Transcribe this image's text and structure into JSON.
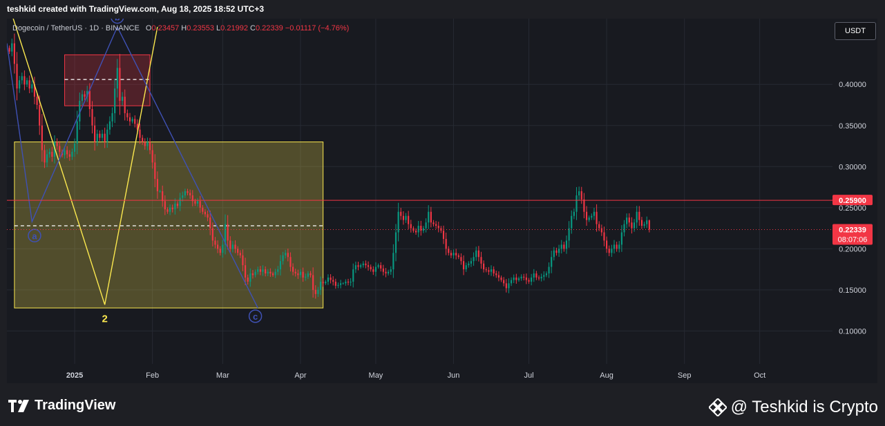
{
  "header": {
    "attribution": "teshkid created with TradingView.com, Aug 18, 2025 18:52 UTC+3"
  },
  "legend": {
    "symbol": "Dogecoin / TetherUS · 1D · BINANCE",
    "o_label": "O",
    "o_value": "0.23457",
    "h_label": "H",
    "h_value": "0.23553",
    "l_label": "L",
    "l_value": "0.21992",
    "c_label": "C",
    "c_value": "0.22339",
    "change": "−0.01117 (−4.76%)"
  },
  "currency_button": "USDT",
  "footer": {
    "logo_text": "TradingView",
    "credit": "@ Teshkid is Crypto"
  },
  "chart_data": {
    "type": "candlestick",
    "symbol": "Dogecoin / TetherUS",
    "interval": "1D",
    "exchange": "BINANCE",
    "y_ticks": [
      "0.40000",
      "0.35000",
      "0.30000",
      "0.25000",
      "0.20000",
      "0.15000",
      "0.10000"
    ],
    "y_tick_values": [
      0.4,
      0.35,
      0.3,
      0.25,
      0.2,
      0.15,
      0.1
    ],
    "ylim": [
      0.06,
      0.48
    ],
    "x_ticks": [
      "2025",
      "Feb",
      "Mar",
      "Apr",
      "May",
      "Jun",
      "Jul",
      "Aug",
      "Sep",
      "Oct"
    ],
    "x_tick_dates": [
      "2025-01-01",
      "2025-02-01",
      "2025-03-01",
      "2025-04-01",
      "2025-05-01",
      "2025-06-01",
      "2025-07-01",
      "2025-08-01",
      "2025-09-01",
      "2025-10-01"
    ],
    "xlim": [
      "2024-12-05",
      "2025-10-30"
    ],
    "grid": true,
    "levels": [
      {
        "price": 0.259,
        "label": "0.25900",
        "color": "#f23645"
      },
      {
        "price": 0.22339,
        "label": "0.22339",
        "sublabel": "08:07:06",
        "color": "#f23645"
      }
    ],
    "zones": [
      {
        "from": "2024-12-08",
        "to": "2025-04-10",
        "low": 0.128,
        "high": 0.33,
        "mid": 0.228,
        "color": "#fce94f"
      },
      {
        "from": "2024-12-28",
        "to": "2025-01-31",
        "low": 0.374,
        "high": 0.436,
        "mid": 0.406,
        "color": "#f23645"
      }
    ],
    "waves": [
      {
        "color": "#fce94f",
        "points": [
          [
            "2024-12-07",
            0.485
          ],
          [
            "2025-01-13",
            0.132
          ],
          [
            "2025-02-03",
            0.47
          ]
        ]
      },
      {
        "color": "#3f51b5",
        "points": [
          [
            "2024-12-05",
            0.45
          ],
          [
            "2024-12-15",
            0.233
          ],
          [
            "2025-01-18",
            0.47
          ],
          [
            "2025-03-15",
            0.128
          ]
        ]
      }
    ],
    "wave_labels": [
      {
        "text": "2",
        "date": "2025-01-13",
        "price": 0.115,
        "color": "#fce94f",
        "circle": false
      },
      {
        "text": "a",
        "date": "2024-12-16",
        "price": 0.216,
        "color": "#3f51b5",
        "circle": true
      },
      {
        "text": "b",
        "date": "2025-01-18",
        "price": 0.482,
        "color": "#3f51b5",
        "circle": true
      },
      {
        "text": "c",
        "date": "2025-03-14",
        "price": 0.118,
        "color": "#3f51b5",
        "circle": true
      }
    ],
    "closes": [
      [
        "2024-12-06",
        0.44
      ],
      [
        "2024-12-07",
        0.45
      ],
      [
        "2024-12-08",
        0.425
      ],
      [
        "2024-12-09",
        0.395
      ],
      [
        "2024-12-10",
        0.405
      ],
      [
        "2024-12-11",
        0.41
      ],
      [
        "2024-12-12",
        0.4
      ],
      [
        "2024-12-13",
        0.405
      ],
      [
        "2024-12-14",
        0.395
      ],
      [
        "2024-12-15",
        0.4
      ],
      [
        "2024-12-16",
        0.385
      ],
      [
        "2024-12-17",
        0.375
      ],
      [
        "2024-12-18",
        0.35
      ],
      [
        "2024-12-19",
        0.32
      ],
      [
        "2024-12-20",
        0.305
      ],
      [
        "2024-12-21",
        0.315
      ],
      [
        "2024-12-22",
        0.318
      ],
      [
        "2024-12-23",
        0.312
      ],
      [
        "2024-12-24",
        0.33
      ],
      [
        "2024-12-25",
        0.325
      ],
      [
        "2024-12-26",
        0.318
      ],
      [
        "2024-12-27",
        0.314
      ],
      [
        "2024-12-28",
        0.32
      ],
      [
        "2024-12-29",
        0.315
      ],
      [
        "2024-12-30",
        0.312
      ],
      [
        "2024-12-31",
        0.318
      ],
      [
        "2025-01-01",
        0.328
      ],
      [
        "2025-01-02",
        0.355
      ],
      [
        "2025-01-03",
        0.38
      ],
      [
        "2025-01-04",
        0.388
      ],
      [
        "2025-01-05",
        0.385
      ],
      [
        "2025-01-06",
        0.392
      ],
      [
        "2025-01-07",
        0.37
      ],
      [
        "2025-01-08",
        0.35
      ],
      [
        "2025-01-09",
        0.33
      ],
      [
        "2025-01-10",
        0.34
      ],
      [
        "2025-01-11",
        0.335
      ],
      [
        "2025-01-12",
        0.34
      ],
      [
        "2025-01-13",
        0.33
      ],
      [
        "2025-01-14",
        0.345
      ],
      [
        "2025-01-15",
        0.355
      ],
      [
        "2025-01-16",
        0.365
      ],
      [
        "2025-01-17",
        0.395
      ],
      [
        "2025-01-18",
        0.42
      ],
      [
        "2025-01-19",
        0.38
      ],
      [
        "2025-01-20",
        0.385
      ],
      [
        "2025-01-21",
        0.365
      ],
      [
        "2025-01-22",
        0.36
      ],
      [
        "2025-01-23",
        0.355
      ],
      [
        "2025-01-24",
        0.358
      ],
      [
        "2025-01-25",
        0.352
      ],
      [
        "2025-01-26",
        0.345
      ],
      [
        "2025-01-27",
        0.335
      ],
      [
        "2025-01-28",
        0.33
      ],
      [
        "2025-01-29",
        0.325
      ],
      [
        "2025-01-30",
        0.33
      ],
      [
        "2025-01-31",
        0.32
      ],
      [
        "2025-02-01",
        0.305
      ],
      [
        "2025-02-02",
        0.285
      ],
      [
        "2025-02-03",
        0.27
      ],
      [
        "2025-02-04",
        0.27
      ],
      [
        "2025-02-05",
        0.258
      ],
      [
        "2025-02-06",
        0.248
      ],
      [
        "2025-02-07",
        0.245
      ],
      [
        "2025-02-08",
        0.25
      ],
      [
        "2025-02-09",
        0.248
      ],
      [
        "2025-02-10",
        0.255
      ],
      [
        "2025-02-11",
        0.252
      ],
      [
        "2025-02-12",
        0.262
      ],
      [
        "2025-02-13",
        0.265
      ],
      [
        "2025-02-14",
        0.27
      ],
      [
        "2025-02-15",
        0.268
      ],
      [
        "2025-02-16",
        0.265
      ],
      [
        "2025-02-17",
        0.258
      ],
      [
        "2025-02-18",
        0.255
      ],
      [
        "2025-02-19",
        0.258
      ],
      [
        "2025-02-20",
        0.25
      ],
      [
        "2025-02-21",
        0.245
      ],
      [
        "2025-02-22",
        0.242
      ],
      [
        "2025-02-23",
        0.238
      ],
      [
        "2025-02-24",
        0.225
      ],
      [
        "2025-02-25",
        0.21
      ],
      [
        "2025-02-26",
        0.205
      ],
      [
        "2025-02-27",
        0.2
      ],
      [
        "2025-02-28",
        0.195
      ],
      [
        "2025-03-01",
        0.205
      ],
      [
        "2025-03-02",
        0.23
      ],
      [
        "2025-03-03",
        0.21
      ],
      [
        "2025-03-04",
        0.2
      ],
      [
        "2025-03-05",
        0.205
      ],
      [
        "2025-03-06",
        0.2
      ],
      [
        "2025-03-07",
        0.195
      ],
      [
        "2025-03-08",
        0.192
      ],
      [
        "2025-03-09",
        0.18
      ],
      [
        "2025-03-10",
        0.165
      ],
      [
        "2025-03-11",
        0.16
      ],
      [
        "2025-03-12",
        0.17
      ],
      [
        "2025-03-13",
        0.168
      ],
      [
        "2025-03-14",
        0.172
      ],
      [
        "2025-03-15",
        0.175
      ],
      [
        "2025-03-16",
        0.172
      ],
      [
        "2025-03-17",
        0.175
      ],
      [
        "2025-03-18",
        0.17
      ],
      [
        "2025-03-19",
        0.172
      ],
      [
        "2025-03-20",
        0.17
      ],
      [
        "2025-03-21",
        0.168
      ],
      [
        "2025-03-22",
        0.172
      ],
      [
        "2025-03-23",
        0.175
      ],
      [
        "2025-03-24",
        0.185
      ],
      [
        "2025-03-25",
        0.192
      ],
      [
        "2025-03-26",
        0.195
      ],
      [
        "2025-03-27",
        0.19
      ],
      [
        "2025-03-28",
        0.178
      ],
      [
        "2025-03-29",
        0.172
      ],
      [
        "2025-03-30",
        0.17
      ],
      [
        "2025-03-31",
        0.168
      ],
      [
        "2025-04-01",
        0.172
      ],
      [
        "2025-04-02",
        0.165
      ],
      [
        "2025-04-03",
        0.166
      ],
      [
        "2025-04-04",
        0.17
      ],
      [
        "2025-04-05",
        0.168
      ],
      [
        "2025-04-06",
        0.15
      ],
      [
        "2025-04-07",
        0.145
      ],
      [
        "2025-04-08",
        0.15
      ],
      [
        "2025-04-09",
        0.16
      ],
      [
        "2025-04-10",
        0.158
      ],
      [
        "2025-04-11",
        0.16
      ],
      [
        "2025-04-12",
        0.165
      ],
      [
        "2025-04-13",
        0.162
      ],
      [
        "2025-04-14",
        0.16
      ],
      [
        "2025-04-15",
        0.155
      ],
      [
        "2025-04-16",
        0.156
      ],
      [
        "2025-04-17",
        0.158
      ],
      [
        "2025-04-18",
        0.158
      ],
      [
        "2025-04-19",
        0.16
      ],
      [
        "2025-04-20",
        0.159
      ],
      [
        "2025-04-21",
        0.16
      ],
      [
        "2025-04-22",
        0.175
      ],
      [
        "2025-04-23",
        0.18
      ],
      [
        "2025-04-24",
        0.178
      ],
      [
        "2025-04-25",
        0.18
      ],
      [
        "2025-04-26",
        0.182
      ],
      [
        "2025-04-27",
        0.18
      ],
      [
        "2025-04-28",
        0.178
      ],
      [
        "2025-04-29",
        0.175
      ],
      [
        "2025-04-30",
        0.172
      ],
      [
        "2025-05-01",
        0.178
      ],
      [
        "2025-05-02",
        0.18
      ],
      [
        "2025-05-03",
        0.176
      ],
      [
        "2025-05-04",
        0.172
      ],
      [
        "2025-05-05",
        0.17
      ],
      [
        "2025-05-06",
        0.172
      ],
      [
        "2025-05-07",
        0.175
      ],
      [
        "2025-05-08",
        0.195
      ],
      [
        "2025-05-09",
        0.22
      ],
      [
        "2025-05-10",
        0.245
      ],
      [
        "2025-05-11",
        0.24
      ],
      [
        "2025-05-12",
        0.235
      ],
      [
        "2025-05-13",
        0.24
      ],
      [
        "2025-05-14",
        0.23
      ],
      [
        "2025-05-15",
        0.225
      ],
      [
        "2025-05-16",
        0.222
      ],
      [
        "2025-05-17",
        0.22
      ],
      [
        "2025-05-18",
        0.228
      ],
      [
        "2025-05-19",
        0.222
      ],
      [
        "2025-05-20",
        0.225
      ],
      [
        "2025-05-21",
        0.232
      ],
      [
        "2025-05-22",
        0.245
      ],
      [
        "2025-05-23",
        0.232
      ],
      [
        "2025-05-24",
        0.23
      ],
      [
        "2025-05-25",
        0.228
      ],
      [
        "2025-05-26",
        0.225
      ],
      [
        "2025-05-27",
        0.222
      ],
      [
        "2025-05-28",
        0.212
      ],
      [
        "2025-05-29",
        0.2
      ],
      [
        "2025-05-30",
        0.195
      ],
      [
        "2025-05-31",
        0.192
      ],
      [
        "2025-06-01",
        0.195
      ],
      [
        "2025-06-02",
        0.192
      ],
      [
        "2025-06-03",
        0.19
      ],
      [
        "2025-06-04",
        0.185
      ],
      [
        "2025-06-05",
        0.175
      ],
      [
        "2025-06-06",
        0.18
      ],
      [
        "2025-06-07",
        0.182
      ],
      [
        "2025-06-08",
        0.185
      ],
      [
        "2025-06-09",
        0.19
      ],
      [
        "2025-06-10",
        0.198
      ],
      [
        "2025-06-11",
        0.19
      ],
      [
        "2025-06-12",
        0.182
      ],
      [
        "2025-06-13",
        0.175
      ],
      [
        "2025-06-14",
        0.174
      ],
      [
        "2025-06-15",
        0.172
      ],
      [
        "2025-06-16",
        0.175
      ],
      [
        "2025-06-17",
        0.17
      ],
      [
        "2025-06-18",
        0.168
      ],
      [
        "2025-06-19",
        0.165
      ],
      [
        "2025-06-20",
        0.162
      ],
      [
        "2025-06-21",
        0.158
      ],
      [
        "2025-06-22",
        0.152
      ],
      [
        "2025-06-23",
        0.158
      ],
      [
        "2025-06-24",
        0.162
      ],
      [
        "2025-06-25",
        0.165
      ],
      [
        "2025-06-26",
        0.162
      ],
      [
        "2025-06-27",
        0.164
      ],
      [
        "2025-06-28",
        0.166
      ],
      [
        "2025-06-29",
        0.165
      ],
      [
        "2025-06-30",
        0.162
      ],
      [
        "2025-07-01",
        0.16
      ],
      [
        "2025-07-02",
        0.165
      ],
      [
        "2025-07-03",
        0.17
      ],
      [
        "2025-07-04",
        0.165
      ],
      [
        "2025-07-05",
        0.164
      ],
      [
        "2025-07-06",
        0.166
      ],
      [
        "2025-07-07",
        0.168
      ],
      [
        "2025-07-08",
        0.17
      ],
      [
        "2025-07-09",
        0.178
      ],
      [
        "2025-07-10",
        0.19
      ],
      [
        "2025-07-11",
        0.198
      ],
      [
        "2025-07-12",
        0.195
      ],
      [
        "2025-07-13",
        0.2
      ],
      [
        "2025-07-14",
        0.205
      ],
      [
        "2025-07-15",
        0.2
      ],
      [
        "2025-07-16",
        0.21
      ],
      [
        "2025-07-17",
        0.225
      ],
      [
        "2025-07-18",
        0.24
      ],
      [
        "2025-07-19",
        0.245
      ],
      [
        "2025-07-20",
        0.265
      ],
      [
        "2025-07-21",
        0.27
      ],
      [
        "2025-07-22",
        0.26
      ],
      [
        "2025-07-23",
        0.245
      ],
      [
        "2025-07-24",
        0.235
      ],
      [
        "2025-07-25",
        0.238
      ],
      [
        "2025-07-26",
        0.24
      ],
      [
        "2025-07-27",
        0.245
      ],
      [
        "2025-07-28",
        0.23
      ],
      [
        "2025-07-29",
        0.225
      ],
      [
        "2025-07-30",
        0.22
      ],
      [
        "2025-07-31",
        0.21
      ],
      [
        "2025-08-01",
        0.2
      ],
      [
        "2025-08-02",
        0.195
      ],
      [
        "2025-08-03",
        0.2
      ],
      [
        "2025-08-04",
        0.205
      ],
      [
        "2025-08-05",
        0.2
      ],
      [
        "2025-08-06",
        0.205
      ],
      [
        "2025-08-07",
        0.22
      ],
      [
        "2025-08-08",
        0.23
      ],
      [
        "2025-08-09",
        0.238
      ],
      [
        "2025-08-10",
        0.232
      ],
      [
        "2025-08-11",
        0.225
      ],
      [
        "2025-08-12",
        0.232
      ],
      [
        "2025-08-13",
        0.245
      ],
      [
        "2025-08-14",
        0.235
      ],
      [
        "2025-08-15",
        0.228
      ],
      [
        "2025-08-16",
        0.23
      ],
      [
        "2025-08-17",
        0.23457
      ],
      [
        "2025-08-18",
        0.22339
      ]
    ]
  }
}
